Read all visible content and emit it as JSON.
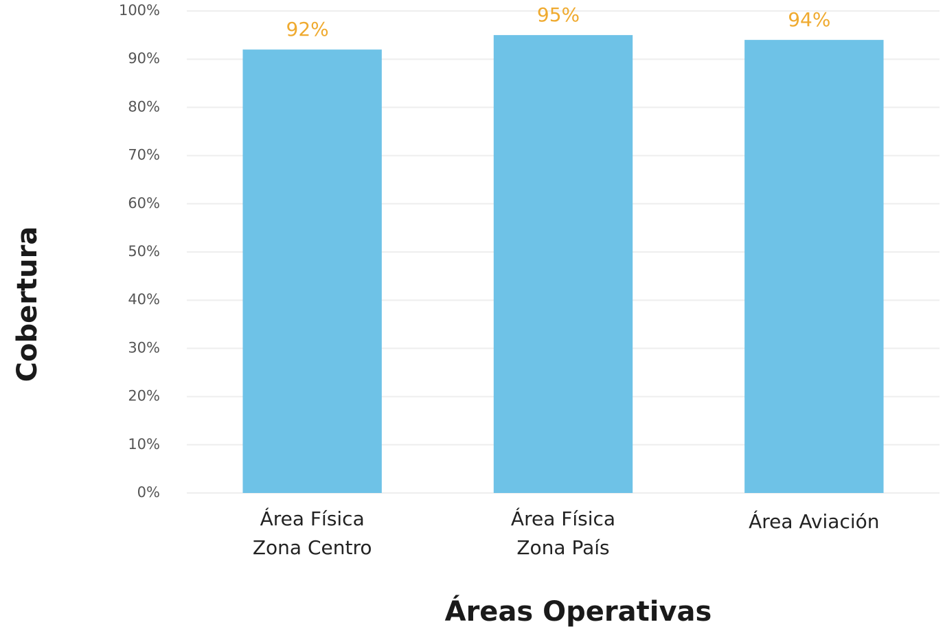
{
  "chart_data": {
    "type": "bar",
    "xlabel": "Áreas Operativas",
    "ylabel": "Cobertura",
    "categories": [
      [
        "Área Física",
        "Zona Centro"
      ],
      [
        "Área Física",
        "Zona País"
      ],
      [
        "Área Aviación"
      ]
    ],
    "values": [
      92,
      95,
      94
    ],
    "value_labels": [
      "92%",
      "95%",
      "94%"
    ],
    "color": "#6ec2e7",
    "label_color": "#efaa2f",
    "ylim": [
      0,
      100
    ],
    "yticks": [
      {
        "value": 0,
        "label": "0%"
      },
      {
        "value": 10,
        "label": "10%"
      },
      {
        "value": 20,
        "label": "20%"
      },
      {
        "value": 30,
        "label": "30%"
      },
      {
        "value": 40,
        "label": "40%"
      },
      {
        "value": 50,
        "label": "50%"
      },
      {
        "value": 60,
        "label": "60%"
      },
      {
        "value": 70,
        "label": "70%"
      },
      {
        "value": 80,
        "label": "80%"
      },
      {
        "value": 90,
        "label": "90%"
      },
      {
        "value": 100,
        "label": "100%"
      }
    ],
    "grid": true
  }
}
